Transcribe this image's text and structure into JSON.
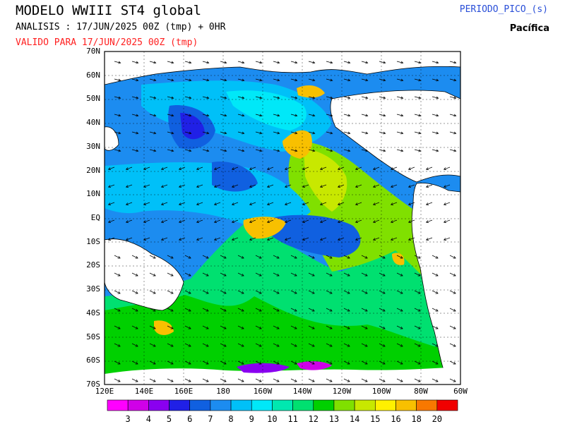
{
  "header": {
    "title": "MODELO WWIII ST4 global",
    "analysis": "ANALISIS : 17/JUN/2025 00Z  (tmp) + 0HR",
    "valid": "VALIDO PARA  17/JUN/2025 00Z  (tmp)",
    "parameter": "PERIODO_PICO_(s)",
    "region": "Pacífica"
  },
  "colors": {
    "valid_text": "#ff2020",
    "parameter_text": "#2a4fd8"
  },
  "map": {
    "lat_labels": [
      "70N",
      "60N",
      "50N",
      "40N",
      "30N",
      "20N",
      "10N",
      "EQ",
      "10S",
      "20S",
      "30S",
      "40S",
      "50S",
      "60S",
      "70S"
    ],
    "lon_labels": [
      "120E",
      "140E",
      "160E",
      "180",
      "160W",
      "140W",
      "120W",
      "100W",
      "80W",
      "60W"
    ]
  },
  "colorbar": {
    "labels": [
      "3",
      "4",
      "5",
      "6",
      "7",
      "8",
      "9",
      "10",
      "11",
      "12",
      "13",
      "14",
      "15",
      "16",
      "18",
      "20"
    ],
    "colors": [
      "#ff00ff",
      "#d000e8",
      "#8a00f0",
      "#2020e6",
      "#1060e0",
      "#1c8cf0",
      "#00c0f8",
      "#00e8f8",
      "#00e8b0",
      "#00e070",
      "#00d000",
      "#80e000",
      "#c8e800",
      "#fff000",
      "#f8c000",
      "#f87800",
      "#f00000"
    ]
  }
}
